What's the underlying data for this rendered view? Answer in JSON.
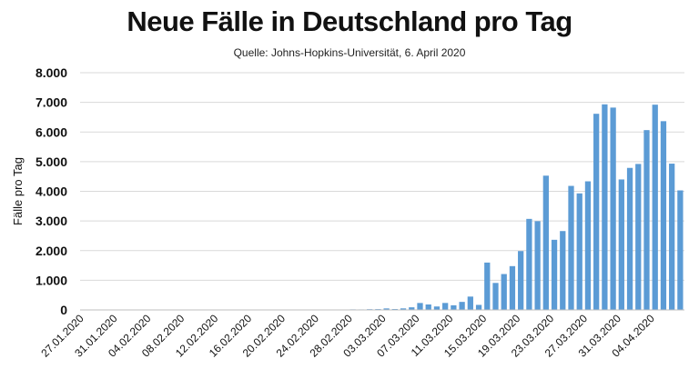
{
  "chart_data": {
    "type": "bar",
    "title": "Neue Fälle in Deutschland pro Tag",
    "subtitle": "Quelle: Johns-Hopkins-Universität, 6. April 2020",
    "ylabel": "Fälle pro Tag",
    "xlabel": "",
    "ylim": [
      0,
      8000
    ],
    "yticks": [
      0,
      1000,
      2000,
      3000,
      4000,
      5000,
      6000,
      7000,
      8000
    ],
    "ytick_labels": [
      "0",
      "1.000",
      "2.000",
      "3.000",
      "4.000",
      "5.000",
      "6.000",
      "7.000",
      "8.000"
    ],
    "grid": true,
    "color": "#5b9bd5",
    "x_tick_labels": [
      "27.01.2020",
      "31.01.2020",
      "04.02.2020",
      "08.02.2020",
      "12.02.2020",
      "16.02.2020",
      "20.02.2020",
      "24.02.2020",
      "28.02.2020",
      "03.03.2020",
      "07.03.2020",
      "11.03.2020",
      "15.03.2020",
      "19.03.2020",
      "23.03.2020",
      "27.03.2020",
      "31.03.2020",
      "04.04.2020"
    ],
    "start_date": "27.01.2020",
    "values": [
      1,
      3,
      0,
      0,
      0,
      1,
      2,
      2,
      1,
      0,
      0,
      1,
      0,
      2,
      0,
      0,
      0,
      1,
      0,
      0,
      0,
      0,
      0,
      0,
      0,
      0,
      0,
      0,
      0,
      0,
      2,
      14,
      19,
      17,
      25,
      28,
      51,
      30,
      52,
      88,
      234,
      184,
      116,
      235,
      157,
      271,
      450,
      170,
      1597,
      910,
      1210,
      1477,
      1985,
      3070,
      2993,
      4528,
      2365,
      2660,
      4183,
      3930,
      4337,
      6615,
      6933,
      6824,
      4400,
      4790,
      4923,
      6064,
      6922,
      6365,
      4933,
      4031
    ]
  }
}
